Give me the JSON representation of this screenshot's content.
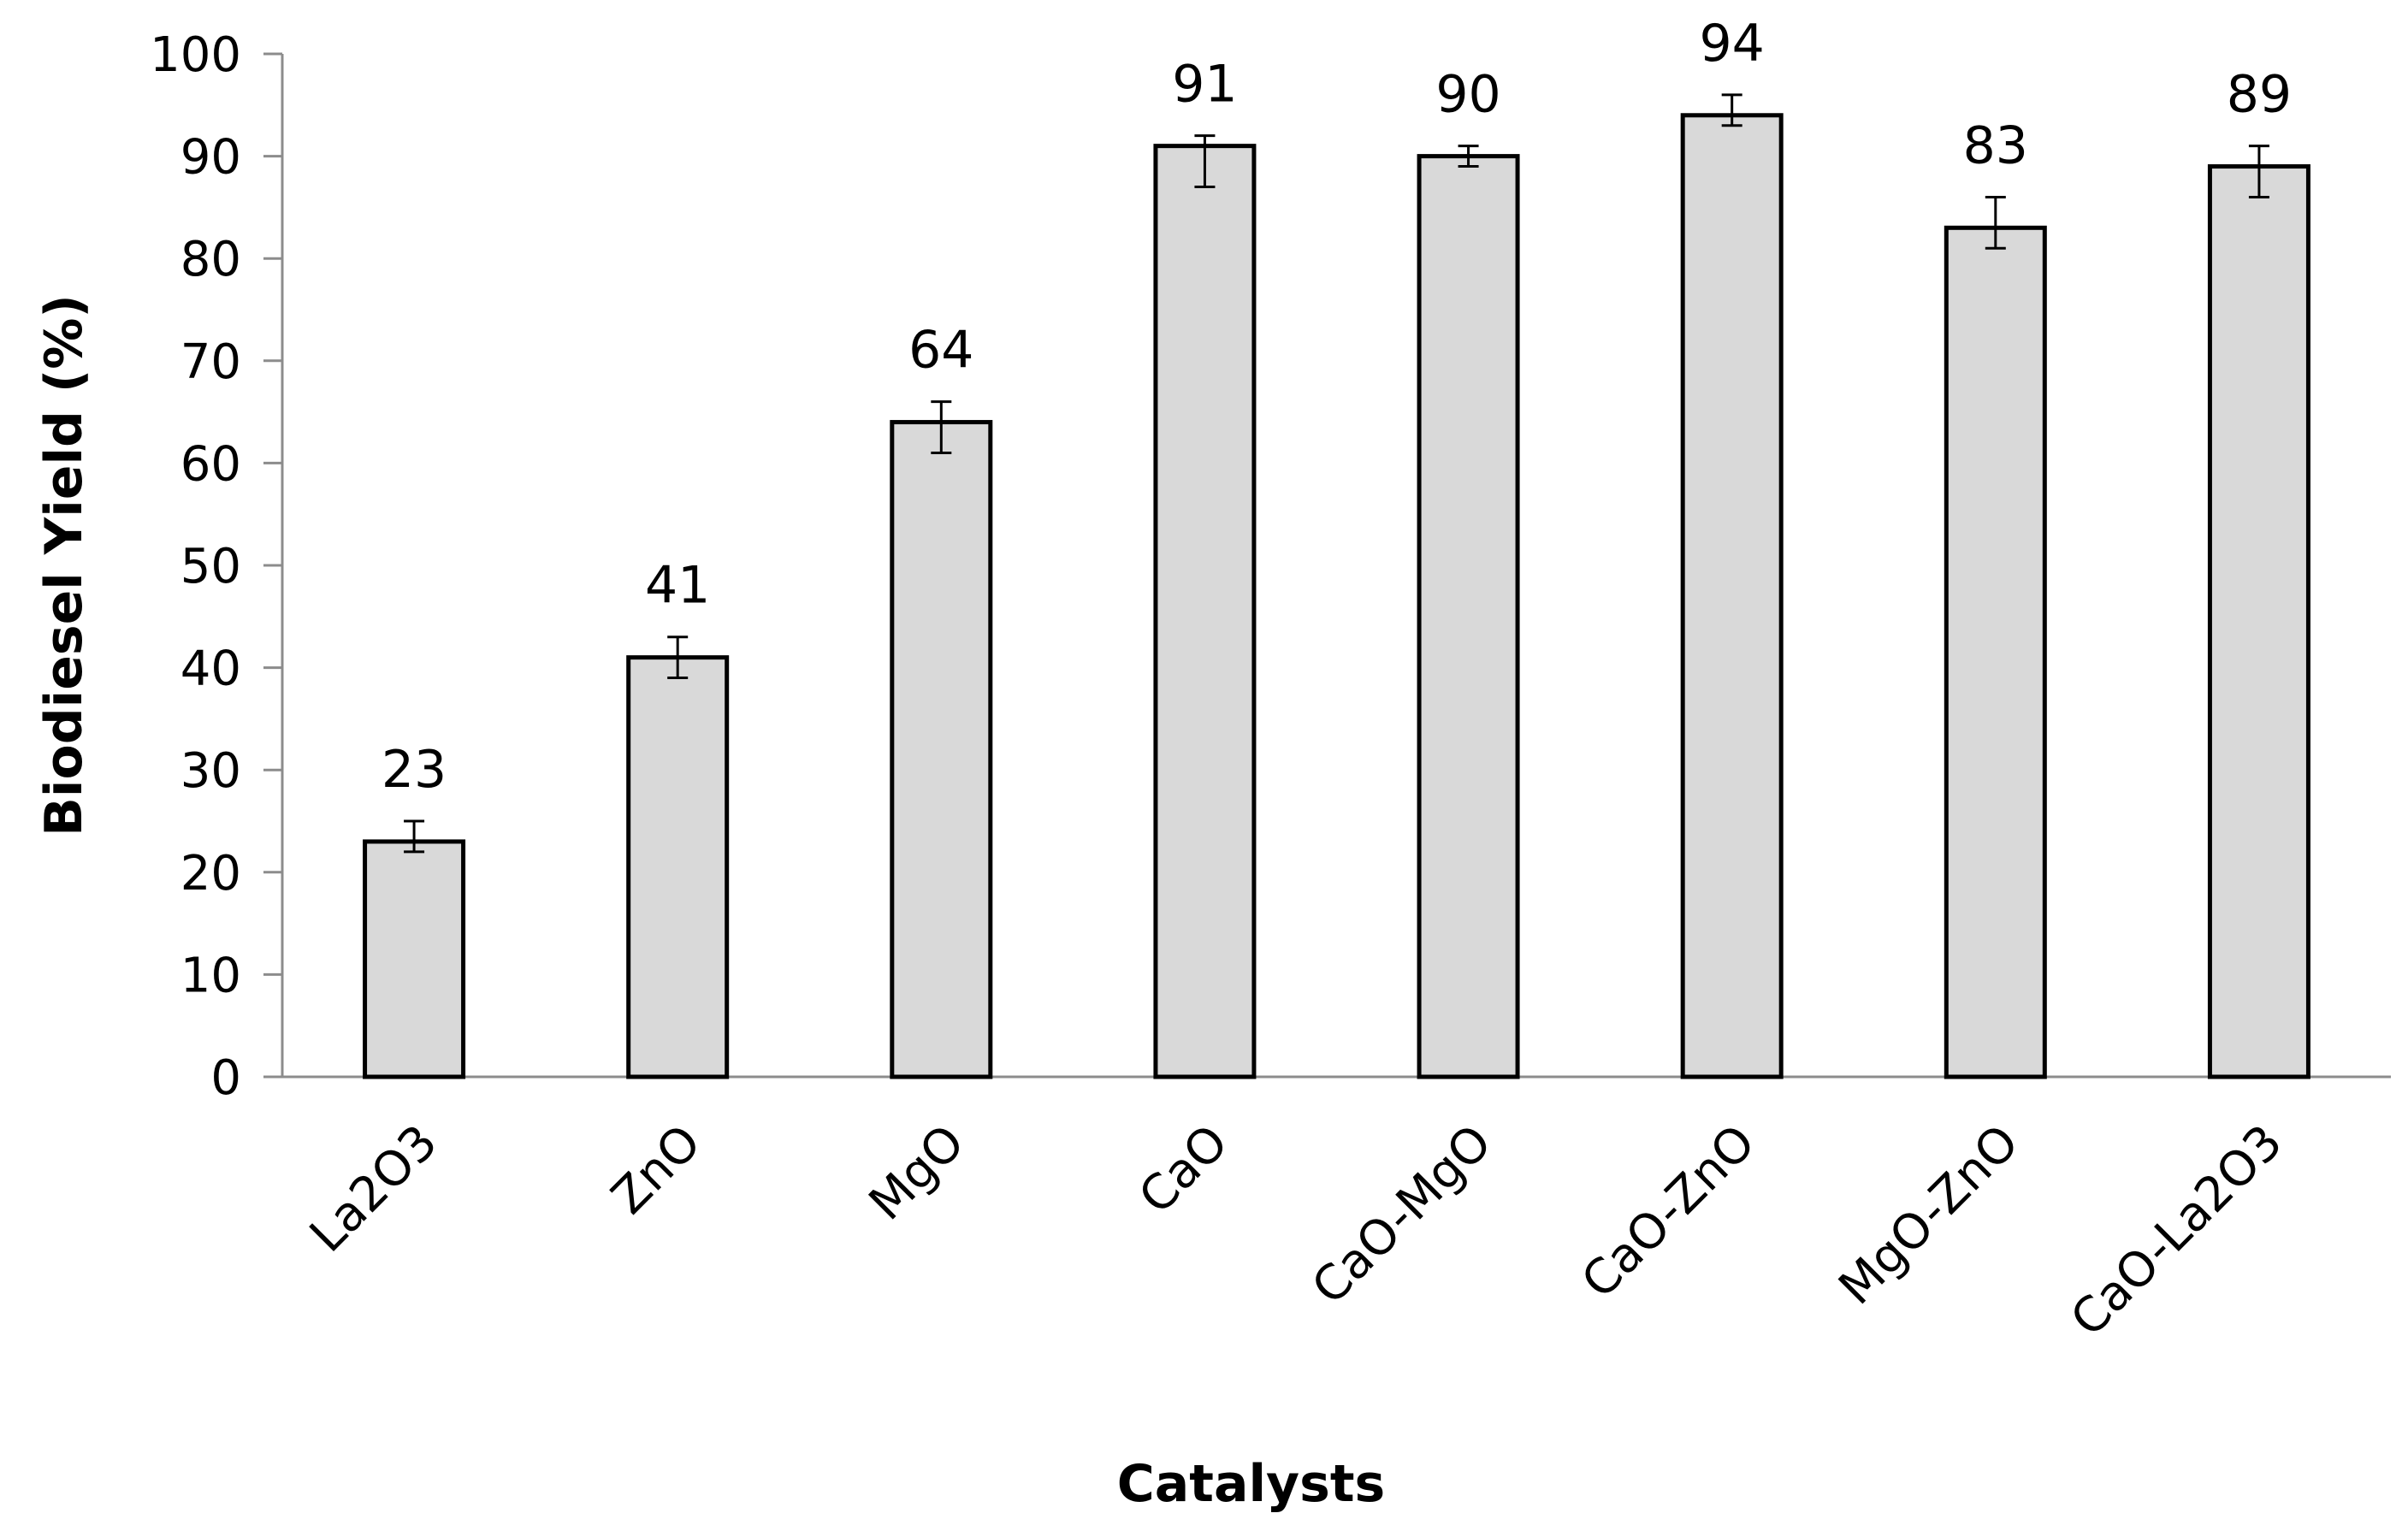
{
  "chart_data": {
    "type": "bar",
    "title": "",
    "xlabel": "Catalysts",
    "ylabel": "Biodiesel Yield (%)",
    "ylim": [
      0,
      100
    ],
    "yticks": [
      0,
      10,
      20,
      30,
      40,
      50,
      60,
      70,
      80,
      90,
      100
    ],
    "grid": false,
    "legend": "none",
    "categories": [
      "La2O3",
      "ZnO",
      "MgO",
      "CaO",
      "CaO-MgO",
      "CaO-ZnO",
      "MgO-ZnO",
      "CaO-La2O3"
    ],
    "values": [
      23,
      41,
      64,
      91,
      90,
      94,
      83,
      89
    ],
    "data_labels": [
      "23",
      "41",
      "64",
      "91",
      "90",
      "94",
      "83",
      "89"
    ],
    "error_bars": [
      {
        "low": 22,
        "high": 25
      },
      {
        "low": 39,
        "high": 43
      },
      {
        "low": 61,
        "high": 66
      },
      {
        "low": 87,
        "high": 92
      },
      {
        "low": 89,
        "high": 91
      },
      {
        "low": 93,
        "high": 96
      },
      {
        "low": 81,
        "high": 86
      },
      {
        "low": 86,
        "high": 91
      }
    ],
    "colors": {
      "bar_fill": "#d9d9d9",
      "bar_stroke": "#000000",
      "axis": "#8c8c8c",
      "error_bar": "#000000"
    }
  }
}
